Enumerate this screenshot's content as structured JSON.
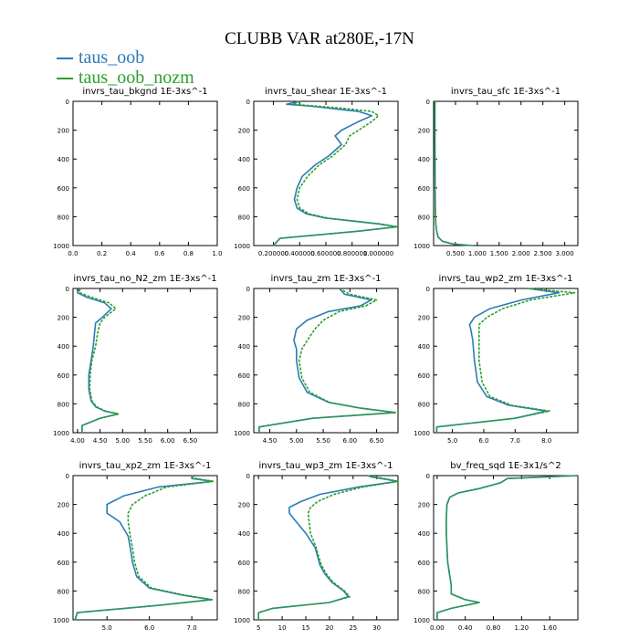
{
  "title": "CLUBB VAR at280E,-17N",
  "legend": [
    {
      "name": "taus_oob",
      "color": "#2c7bb6"
    },
    {
      "name": "taus_oob_nozm",
      "color": "#2ca02c"
    }
  ],
  "chart_data": [
    {
      "type": "line",
      "title": "invrs_tau_bkgnd   1E-3xs^-1",
      "xlim": [
        0,
        1.0
      ],
      "xticks": [
        0.0,
        0.2,
        0.4,
        0.6,
        0.8,
        1.0
      ],
      "xticklabels": [
        "0.0",
        "0.2",
        "0.4",
        "0.6",
        "0.8",
        "1.0"
      ],
      "ylim": [
        0,
        1000
      ],
      "yticks": [
        0,
        200,
        400,
        600,
        800,
        1000
      ],
      "series": []
    },
    {
      "type": "line",
      "title": "invrs_tau_shear   1E-3xs^-1",
      "xlim": [
        0.05,
        1.15
      ],
      "xticks": [
        0.2,
        0.4,
        0.6,
        0.8,
        1.0
      ],
      "xticklabels": [
        "0.200000",
        "0.400000",
        "0.600000",
        "0.800000",
        "1.000000"
      ],
      "ylim": [
        0,
        1000
      ],
      "yticks": [
        0,
        200,
        400,
        600,
        800,
        1000
      ],
      "series": [
        {
          "name": "taus_oob",
          "x": [
            0.4,
            0.3,
            0.5,
            0.65,
            0.85,
            0.95,
            0.85,
            0.72,
            0.67,
            0.72,
            0.62,
            0.52,
            0.42,
            0.38,
            0.36,
            0.38,
            0.45,
            0.6,
            0.8,
            1.0,
            1.14,
            0.85,
            0.25,
            0.2
          ],
          "y": [
            0,
            20,
            35,
            50,
            70,
            100,
            140,
            200,
            240,
            300,
            380,
            440,
            520,
            600,
            680,
            740,
            780,
            810,
            830,
            850,
            870,
            900,
            950,
            1000
          ]
        },
        {
          "name": "taus_oob_nozm",
          "x": [
            0.4,
            0.35,
            0.55,
            0.75,
            0.95,
            1.0,
            0.95,
            0.85,
            0.78,
            0.75,
            0.65,
            0.55,
            0.46,
            0.4,
            0.38,
            0.4,
            0.47,
            0.62,
            0.82,
            1.02,
            1.15,
            0.85,
            0.25,
            0.2
          ],
          "y": [
            0,
            20,
            35,
            50,
            70,
            100,
            140,
            200,
            240,
            300,
            380,
            440,
            520,
            600,
            680,
            740,
            780,
            810,
            830,
            850,
            870,
            900,
            950,
            1000
          ]
        }
      ]
    },
    {
      "type": "line",
      "title": "invrs_tau_sfc   1E-3xs^-1",
      "xlim": [
        0.0,
        3.3
      ],
      "xticks": [
        0.5,
        1.0,
        1.5,
        2.0,
        2.5,
        3.0
      ],
      "xticklabels": [
        "0.500",
        "1.000",
        "1.500",
        "2.000",
        "2.500",
        "3.000"
      ],
      "ylim": [
        0,
        1000
      ],
      "yticks": [
        0,
        200,
        400,
        600,
        800,
        1000
      ],
      "series": [
        {
          "name": "taus_oob",
          "x": [
            0.03,
            0.03,
            0.035,
            0.04,
            0.05,
            0.07,
            0.1,
            0.2,
            0.45,
            0.9
          ],
          "y": [
            0,
            300,
            600,
            750,
            850,
            900,
            940,
            970,
            990,
            1000
          ]
        },
        {
          "name": "taus_oob_nozm",
          "x": [
            0.03,
            0.03,
            0.035,
            0.04,
            0.05,
            0.07,
            0.1,
            0.2,
            0.45,
            0.9
          ],
          "y": [
            0,
            300,
            600,
            750,
            850,
            900,
            940,
            970,
            990,
            1000
          ]
        }
      ]
    },
    {
      "type": "line",
      "title": "invrs_tau_no_N2_zm   1E-3xs^-1",
      "xlim": [
        3.9,
        7.1
      ],
      "xticks": [
        4.0,
        4.5,
        5.0,
        5.5,
        6.0,
        6.5
      ],
      "xticklabels": [
        "4.00",
        "4.50",
        "5.00",
        "5.50",
        "6.00",
        "6.50"
      ],
      "ylim": [
        0,
        1000
      ],
      "yticks": [
        0,
        200,
        400,
        600,
        800,
        1000
      ],
      "series": [
        {
          "name": "taus_oob",
          "x": [
            4.05,
            4.0,
            4.2,
            4.6,
            4.75,
            4.55,
            4.4,
            4.38,
            4.35,
            4.3,
            4.25,
            4.25,
            4.3,
            4.4,
            4.6,
            4.9,
            4.5,
            4.1,
            4.1
          ],
          "y": [
            0,
            30,
            60,
            100,
            140,
            200,
            240,
            300,
            400,
            500,
            600,
            700,
            780,
            820,
            850,
            870,
            900,
            950,
            1000
          ]
        },
        {
          "name": "taus_oob_nozm",
          "x": [
            4.05,
            4.05,
            4.3,
            4.7,
            4.85,
            4.6,
            4.5,
            4.45,
            4.4,
            4.32,
            4.28,
            4.27,
            4.32,
            4.42,
            4.62,
            4.92,
            4.5,
            4.1,
            4.1
          ],
          "y": [
            0,
            30,
            60,
            100,
            140,
            200,
            240,
            300,
            400,
            500,
            600,
            700,
            780,
            820,
            850,
            870,
            900,
            950,
            1000
          ]
        }
      ]
    },
    {
      "type": "line",
      "title": "invrs_tau_zm   1E-3xs^-1",
      "xlim": [
        4.2,
        6.9
      ],
      "xticks": [
        4.5,
        5.0,
        5.5,
        6.0,
        6.5
      ],
      "xticklabels": [
        "4.50",
        "5.00",
        "5.50",
        "6.00",
        "6.50"
      ],
      "ylim": [
        0,
        1000
      ],
      "yticks": [
        0,
        200,
        400,
        600,
        800,
        1000
      ],
      "series": [
        {
          "name": "taus_oob",
          "x": [
            5.8,
            5.9,
            6.4,
            6.2,
            5.6,
            5.2,
            5.0,
            4.95,
            5.0,
            5.0,
            5.05,
            5.2,
            5.6,
            6.2,
            6.85,
            5.3,
            4.3,
            4.3
          ],
          "y": [
            0,
            40,
            80,
            120,
            160,
            220,
            280,
            360,
            420,
            500,
            620,
            720,
            790,
            830,
            860,
            900,
            960,
            1000
          ]
        },
        {
          "name": "taus_oob_nozm",
          "x": [
            5.8,
            6.0,
            6.5,
            6.3,
            5.8,
            5.5,
            5.35,
            5.2,
            5.1,
            5.05,
            5.1,
            5.25,
            5.62,
            6.2,
            6.85,
            5.3,
            4.3,
            4.3
          ],
          "y": [
            0,
            40,
            80,
            120,
            160,
            220,
            280,
            360,
            420,
            500,
            620,
            720,
            790,
            830,
            860,
            900,
            960,
            1000
          ]
        }
      ]
    },
    {
      "type": "line",
      "title": "invrs_tau_wp2_zm   1E-3xs^-1",
      "xlim": [
        4.4,
        9.0
      ],
      "xticks": [
        5.0,
        6.0,
        7.0,
        8.0
      ],
      "xticklabels": [
        "5.0",
        "6.0",
        "7.0",
        "8.0"
      ],
      "ylim": [
        0,
        1000
      ],
      "yticks": [
        0,
        200,
        400,
        600,
        800,
        1000
      ],
      "series": [
        {
          "name": "taus_oob",
          "x": [
            7.4,
            8.4,
            7.2,
            6.2,
            5.7,
            5.55,
            5.6,
            5.65,
            5.7,
            5.8,
            6.1,
            6.8,
            8.0,
            7.0,
            4.5,
            4.5
          ],
          "y": [
            0,
            30,
            80,
            140,
            200,
            250,
            300,
            360,
            500,
            650,
            750,
            810,
            850,
            900,
            960,
            1000
          ]
        },
        {
          "name": "taus_oob_nozm",
          "x": [
            7.4,
            8.9,
            7.5,
            6.6,
            6.1,
            5.85,
            5.85,
            5.85,
            5.85,
            5.95,
            6.2,
            6.9,
            8.1,
            7.0,
            4.5,
            4.5
          ],
          "y": [
            0,
            30,
            80,
            140,
            200,
            250,
            300,
            360,
            500,
            650,
            750,
            810,
            850,
            900,
            960,
            1000
          ]
        }
      ]
    },
    {
      "type": "line",
      "title": "invrs_tau_xp2_zm   1E-3xs^-1",
      "xlim": [
        4.2,
        7.6
      ],
      "xticks": [
        5.0,
        6.0,
        7.0
      ],
      "xticklabels": [
        "5.0",
        "6.0",
        "7.0"
      ],
      "ylim": [
        0,
        1000
      ],
      "yticks": [
        0,
        200,
        400,
        600,
        800,
        1000
      ],
      "series": [
        {
          "name": "taus_oob",
          "x": [
            7.0,
            7.0,
            7.5,
            6.2,
            5.4,
            5.0,
            5.0,
            5.3,
            5.5,
            5.55,
            5.6,
            5.7,
            6.0,
            6.8,
            7.45,
            6.2,
            4.3,
            4.25
          ],
          "y": [
            0,
            20,
            40,
            80,
            140,
            200,
            260,
            320,
            420,
            500,
            600,
            700,
            780,
            830,
            860,
            900,
            950,
            1000
          ]
        },
        {
          "name": "taus_oob_nozm",
          "x": [
            7.0,
            7.1,
            7.5,
            6.4,
            5.9,
            5.6,
            5.5,
            5.5,
            5.55,
            5.6,
            5.65,
            5.75,
            6.05,
            6.85,
            7.5,
            6.2,
            4.3,
            4.25
          ],
          "y": [
            0,
            20,
            40,
            80,
            140,
            200,
            260,
            320,
            420,
            500,
            600,
            700,
            780,
            830,
            860,
            900,
            950,
            1000
          ]
        }
      ]
    },
    {
      "type": "line",
      "title": "invrs_tau_wp3_zm   1E-3xs^-1",
      "xlim": [
        4.0,
        34.5
      ],
      "xticks": [
        5,
        10,
        15,
        20,
        25,
        30
      ],
      "xticklabels": [
        "5",
        "10",
        "15",
        "20",
        "25",
        "30"
      ],
      "ylim": [
        0,
        1000
      ],
      "yticks": [
        0,
        200,
        400,
        600,
        800,
        1000
      ],
      "series": [
        {
          "name": "taus_oob",
          "x": [
            28,
            29,
            34.5,
            26,
            18,
            14,
            11.5,
            11.5,
            13,
            15,
            17,
            17.5,
            18,
            19,
            20.5,
            23,
            24,
            20,
            8,
            5,
            5
          ],
          "y": [
            0,
            10,
            40,
            80,
            130,
            180,
            220,
            260,
            320,
            400,
            500,
            560,
            620,
            680,
            740,
            800,
            840,
            880,
            920,
            950,
            1000
          ]
        },
        {
          "name": "taus_oob_nozm",
          "x": [
            28,
            30,
            34.5,
            27,
            21,
            17.5,
            16,
            15.5,
            15.7,
            16,
            17.2,
            17.7,
            18.3,
            19.3,
            20.8,
            23.2,
            24.3,
            20,
            8,
            5,
            5
          ],
          "y": [
            0,
            10,
            40,
            80,
            130,
            180,
            220,
            260,
            320,
            400,
            500,
            560,
            620,
            680,
            740,
            800,
            840,
            880,
            920,
            950,
            1000
          ]
        }
      ]
    },
    {
      "type": "line",
      "title": "bv_freq_sqd   1E-3x1/s^2",
      "xlim": [
        -0.05,
        2.0
      ],
      "xticks": [
        0.0,
        0.4,
        0.8,
        1.2,
        1.6
      ],
      "xticklabels": [
        "0.00",
        "0.40",
        "0.80",
        "1.20",
        "1.60"
      ],
      "ylim": [
        0,
        1000
      ],
      "yticks": [
        0,
        200,
        400,
        600,
        800,
        1000
      ],
      "series": [
        {
          "name": "taus_oob",
          "x": [
            2.0,
            1.0,
            0.9,
            0.6,
            0.3,
            0.18,
            0.14,
            0.13,
            0.13,
            0.15,
            0.2,
            0.2,
            0.4,
            0.6,
            0.2,
            0.0,
            0.0
          ],
          "y": [
            0,
            20,
            50,
            90,
            120,
            150,
            200,
            300,
            400,
            600,
            760,
            820,
            860,
            880,
            920,
            950,
            1000
          ]
        },
        {
          "name": "taus_oob_nozm",
          "x": [
            2.0,
            1.0,
            0.9,
            0.6,
            0.3,
            0.18,
            0.14,
            0.13,
            0.13,
            0.15,
            0.2,
            0.2,
            0.4,
            0.6,
            0.2,
            0.0,
            0.0
          ],
          "y": [
            0,
            20,
            50,
            90,
            120,
            150,
            200,
            300,
            400,
            600,
            760,
            820,
            860,
            880,
            920,
            950,
            1000
          ]
        }
      ]
    }
  ]
}
